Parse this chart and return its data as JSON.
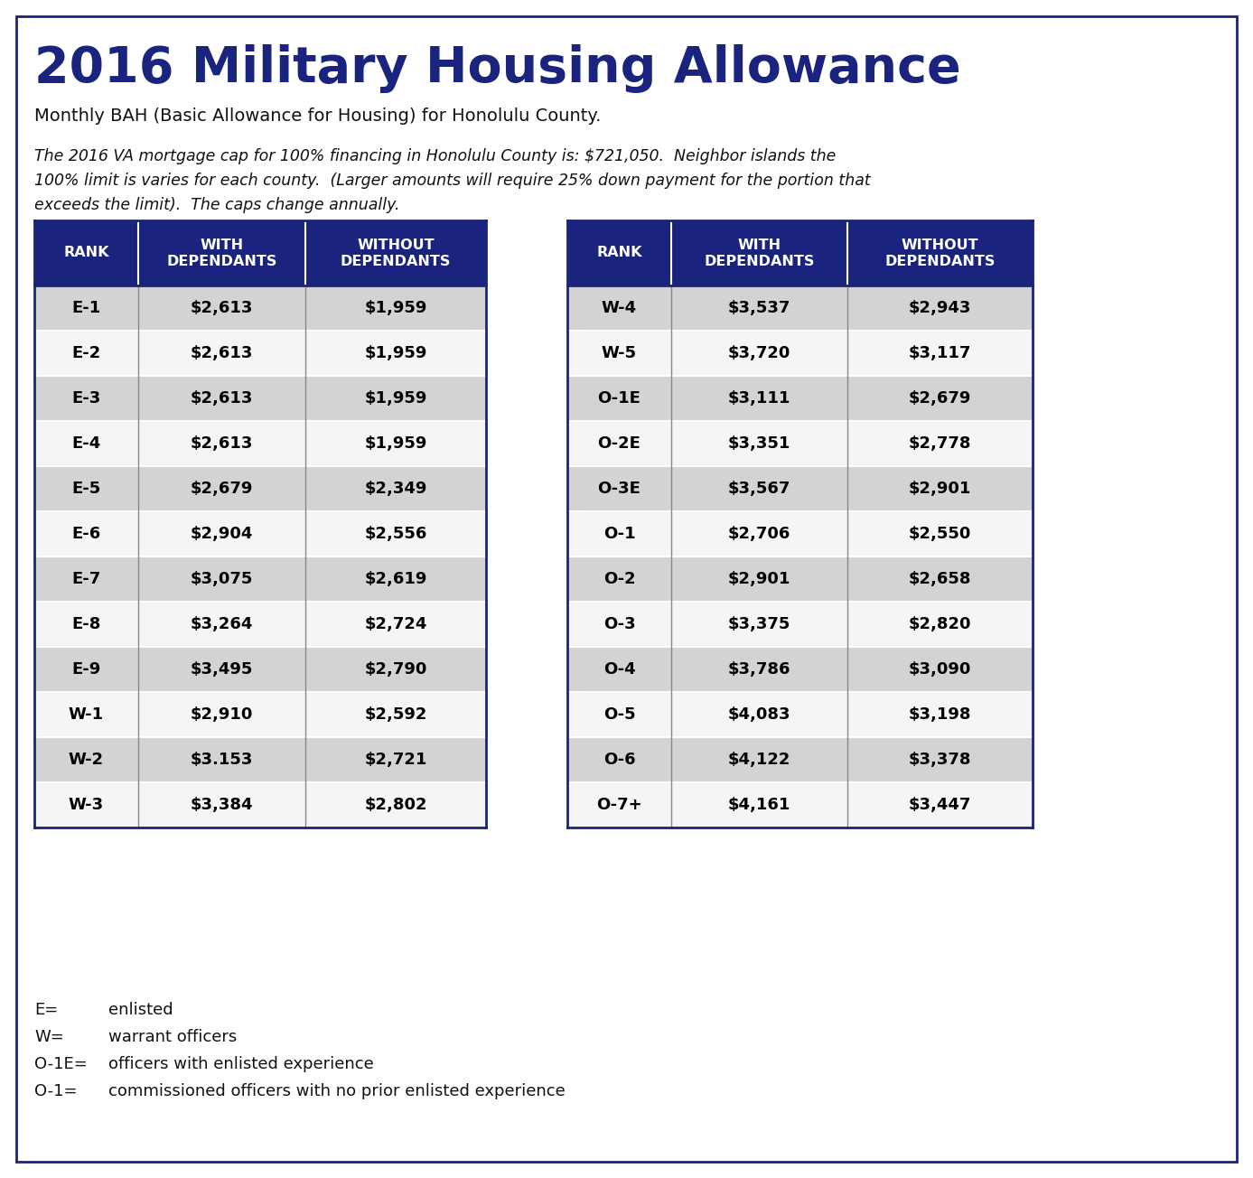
{
  "title": "2016 Military Housing Allowance",
  "subtitle": "Monthly BAH (Basic Allowance for Housing) for Honolulu County.",
  "note_lines": [
    "The 2016 VA mortgage cap for 100% financing in Honolulu County is: $721,050.  Neighbor islands the",
    "100% limit is varies for each county.  (Larger amounts will require 25% down payment for the portion that",
    "exceeds the limit).  The caps change annually."
  ],
  "left_table": {
    "headers": [
      "RANK",
      "WITH\nDEPENDANTS",
      "WITHOUT\nDEPENDANTS"
    ],
    "rows": [
      [
        "E-1",
        "$2,613",
        "$1,959"
      ],
      [
        "E-2",
        "$2,613",
        "$1,959"
      ],
      [
        "E-3",
        "$2,613",
        "$1,959"
      ],
      [
        "E-4",
        "$2,613",
        "$1,959"
      ],
      [
        "E-5",
        "$2,679",
        "$2,349"
      ],
      [
        "E-6",
        "$2,904",
        "$2,556"
      ],
      [
        "E-7",
        "$3,075",
        "$2,619"
      ],
      [
        "E-8",
        "$3,264",
        "$2,724"
      ],
      [
        "E-9",
        "$3,495",
        "$2,790"
      ],
      [
        "W-1",
        "$2,910",
        "$2,592"
      ],
      [
        "W-2",
        "$3.153",
        "$2,721"
      ],
      [
        "W-3",
        "$3,384",
        "$2,802"
      ]
    ]
  },
  "right_table": {
    "headers": [
      "RANK",
      "WITH\nDEPENDANTS",
      "WITHOUT\nDEPENDANTS"
    ],
    "rows": [
      [
        "W-4",
        "$3,537",
        "$2,943"
      ],
      [
        "W-5",
        "$3,720",
        "$3,117"
      ],
      [
        "O-1E",
        "$3,111",
        "$2,679"
      ],
      [
        "O-2E",
        "$3,351",
        "$2,778"
      ],
      [
        "O-3E",
        "$3,567",
        "$2,901"
      ],
      [
        "O-1",
        "$2,706",
        "$2,550"
      ],
      [
        "O-2",
        "$2,901",
        "$2,658"
      ],
      [
        "O-3",
        "$3,375",
        "$2,820"
      ],
      [
        "O-4",
        "$3,786",
        "$3,090"
      ],
      [
        "O-5",
        "$4,083",
        "$3,198"
      ],
      [
        "O-6",
        "$4,122",
        "$3,378"
      ],
      [
        "O-7+",
        "$4,161",
        "$3,447"
      ]
    ]
  },
  "legend_items": [
    [
      "E=",
      "enlisted"
    ],
    [
      "W=",
      "warrant officers"
    ],
    [
      "O-1E=",
      "officers with enlisted experience"
    ],
    [
      "O-1=",
      "commissioned officers with no prior enlisted experience"
    ]
  ],
  "header_bg": "#1a237e",
  "header_fg": "#ffffff",
  "row_bg_odd": "#d3d3d3",
  "row_bg_even": "#f5f5f5",
  "row_fg": "#000000",
  "title_color": "#1a237e",
  "border_color": "#1a237e",
  "table_line_color": "#888888",
  "bg_color": "#ffffff"
}
